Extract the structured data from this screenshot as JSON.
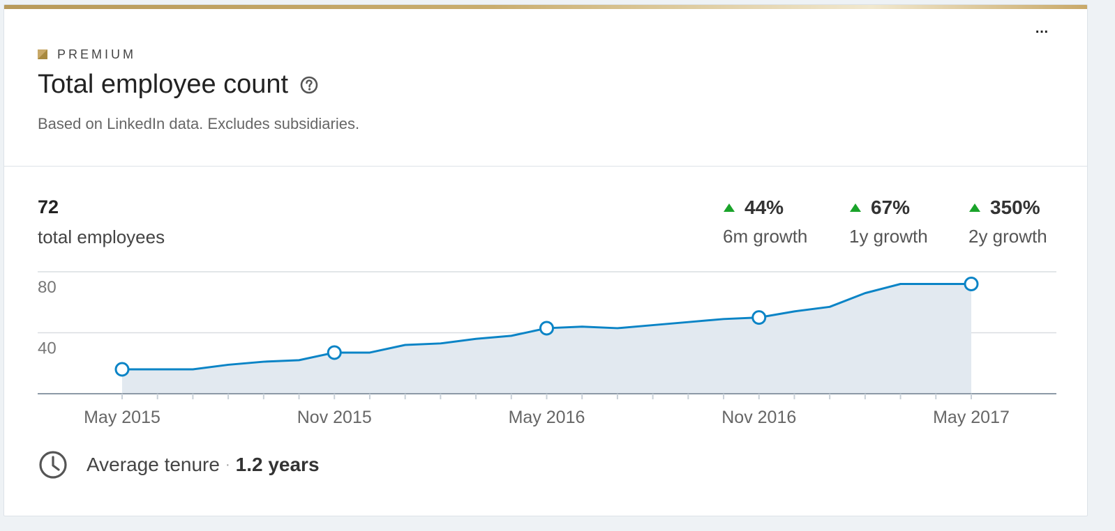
{
  "colors": {
    "premium_gold": "#c8a867",
    "line": "#0b84c6",
    "area": "#e2e9f0",
    "growth_up": "#1aa32a"
  },
  "header": {
    "premium_label": "PREMIUM",
    "title": "Total employee count",
    "subtitle": "Based on LinkedIn data. Excludes subsidiaries.",
    "more_label": "..."
  },
  "summary": {
    "total_value": "72",
    "total_label": "total employees"
  },
  "growth": [
    {
      "value": "44%",
      "label": "6m growth"
    },
    {
      "value": "67%",
      "label": "1y growth"
    },
    {
      "value": "350%",
      "label": "2y growth"
    }
  ],
  "tenure": {
    "label": "Average tenure",
    "separator": "·",
    "value": "1.2 years"
  },
  "chart_data": {
    "type": "area",
    "x": [
      "May 2015",
      "Jun 2015",
      "Jul 2015",
      "Aug 2015",
      "Sep 2015",
      "Oct 2015",
      "Nov 2015",
      "Dec 2015",
      "Jan 2016",
      "Feb 2016",
      "Mar 2016",
      "Apr 2016",
      "May 2016",
      "Jun 2016",
      "Jul 2016",
      "Aug 2016",
      "Sep 2016",
      "Oct 2016",
      "Nov 2016",
      "Dec 2016",
      "Jan 2017",
      "Feb 2017",
      "Mar 2017",
      "Apr 2017",
      "May 2017"
    ],
    "values": [
      16,
      16,
      16,
      19,
      21,
      22,
      27,
      27,
      32,
      33,
      36,
      38,
      43,
      44,
      43,
      45,
      47,
      49,
      50,
      54,
      57,
      66,
      72,
      72,
      72
    ],
    "markers": [
      0,
      6,
      12,
      18,
      24
    ],
    "x_tick_labels": [
      {
        "index": 0,
        "label": "May 2015"
      },
      {
        "index": 6,
        "label": "Nov 2015"
      },
      {
        "index": 12,
        "label": "May 2016"
      },
      {
        "index": 18,
        "label": "Nov 2016"
      },
      {
        "index": 24,
        "label": "May 2017"
      }
    ],
    "y_ticks": [
      40,
      80
    ],
    "ylim": [
      0,
      80
    ],
    "grid": true,
    "xlabel": "",
    "ylabel": ""
  }
}
